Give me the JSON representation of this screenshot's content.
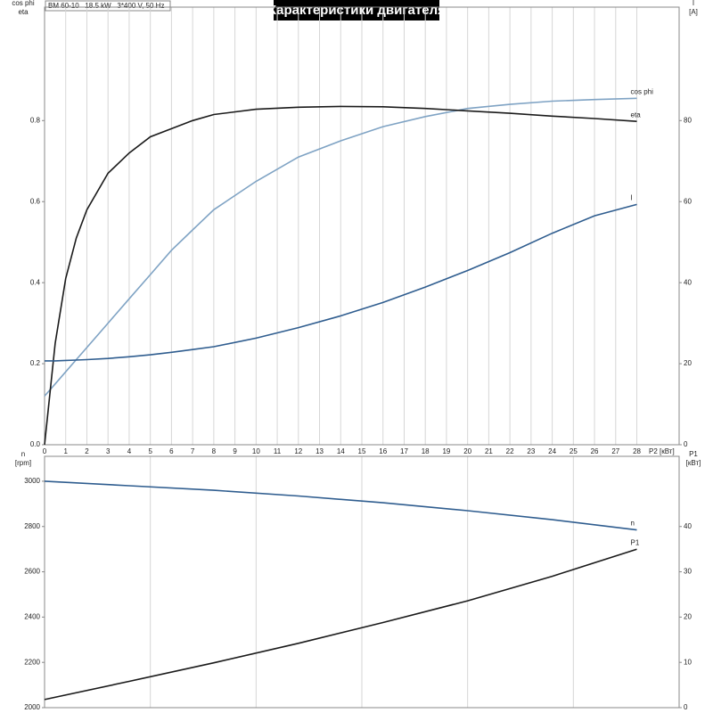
{
  "chart_data": [
    {
      "type": "line",
      "title": "Характеристики двигателя",
      "subtitle": "BM 60-10   18.5 kW   3*400 V, 50 Hz",
      "xlabel": "P2 [кВт]",
      "ylabel": [
        "cos phi",
        "eta"
      ],
      "y2label": [
        "I",
        "[A]"
      ],
      "x": [
        0,
        0.5,
        1,
        1.5,
        2,
        3,
        4,
        5,
        6,
        7,
        8,
        10,
        12,
        14,
        16,
        18,
        20,
        22,
        24,
        26,
        28
      ],
      "series": [
        {
          "name": "cos phi",
          "color": "#7fa3c4",
          "values": [
            0.12,
            0.15,
            0.18,
            0.21,
            0.24,
            0.3,
            0.36,
            0.42,
            0.48,
            0.53,
            0.58,
            0.65,
            0.71,
            0.75,
            0.785,
            0.81,
            0.83,
            0.84,
            0.848,
            0.852,
            0.855
          ]
        },
        {
          "name": "eta",
          "color": "#1a1a1a",
          "values": [
            0,
            0.25,
            0.41,
            0.51,
            0.58,
            0.67,
            0.72,
            0.76,
            0.78,
            0.8,
            0.815,
            0.828,
            0.833,
            0.835,
            0.834,
            0.83,
            0.824,
            0.818,
            0.811,
            0.805,
            0.798
          ]
        },
        {
          "name": "I",
          "color": "#2f5d8f",
          "axis": "y2",
          "values": [
            20.7,
            20.7,
            20.8,
            20.9,
            21,
            21.3,
            21.7,
            22.2,
            22.8,
            23.5,
            24.2,
            26.3,
            28.9,
            31.8,
            35.1,
            38.9,
            43,
            47.4,
            52.2,
            56.5,
            59.3
          ]
        }
      ],
      "xlim": [
        0,
        30
      ],
      "xticks": [
        0,
        1,
        2,
        3,
        4,
        5,
        6,
        7,
        8,
        9,
        10,
        11,
        12,
        13,
        14,
        15,
        16,
        17,
        18,
        19,
        20,
        21,
        22,
        23,
        24,
        25,
        26,
        27,
        28
      ],
      "ylim": [
        0,
        1.08
      ],
      "yticks": [
        {
          "value": 0,
          "label": "0.0"
        },
        0.2,
        0.4,
        0.6,
        0.8
      ],
      "y2lim": [
        0,
        108
      ],
      "y2ticks": [
        0,
        20,
        40,
        60,
        80
      ],
      "grid": "x"
    },
    {
      "type": "line",
      "ylabel": [
        "n",
        "[rpm]"
      ],
      "y2label": [
        "P1",
        "[кВт]"
      ],
      "x": [
        0,
        4,
        8,
        12,
        16,
        20,
        24,
        28
      ],
      "series": [
        {
          "name": "n",
          "color": "#2f5d8f",
          "values": [
            3000,
            2980,
            2960,
            2935,
            2905,
            2870,
            2830,
            2785
          ]
        },
        {
          "name": "P1",
          "color": "#1a1a1a",
          "axis": "y2",
          "values": [
            1.8,
            5.8,
            9.9,
            14.2,
            18.8,
            23.6,
            29.0,
            35.0
          ]
        }
      ],
      "xlim": [
        0,
        30
      ],
      "xgrid": [
        0,
        5,
        10,
        15,
        20,
        25,
        30
      ],
      "ylim": [
        2000,
        3110
      ],
      "yticks": [
        2000,
        2200,
        2400,
        2600,
        2800,
        3000
      ],
      "y2lim": [
        0,
        55.5
      ],
      "y2ticks": [
        0,
        10,
        20,
        30,
        40
      ],
      "grid": "x"
    }
  ]
}
